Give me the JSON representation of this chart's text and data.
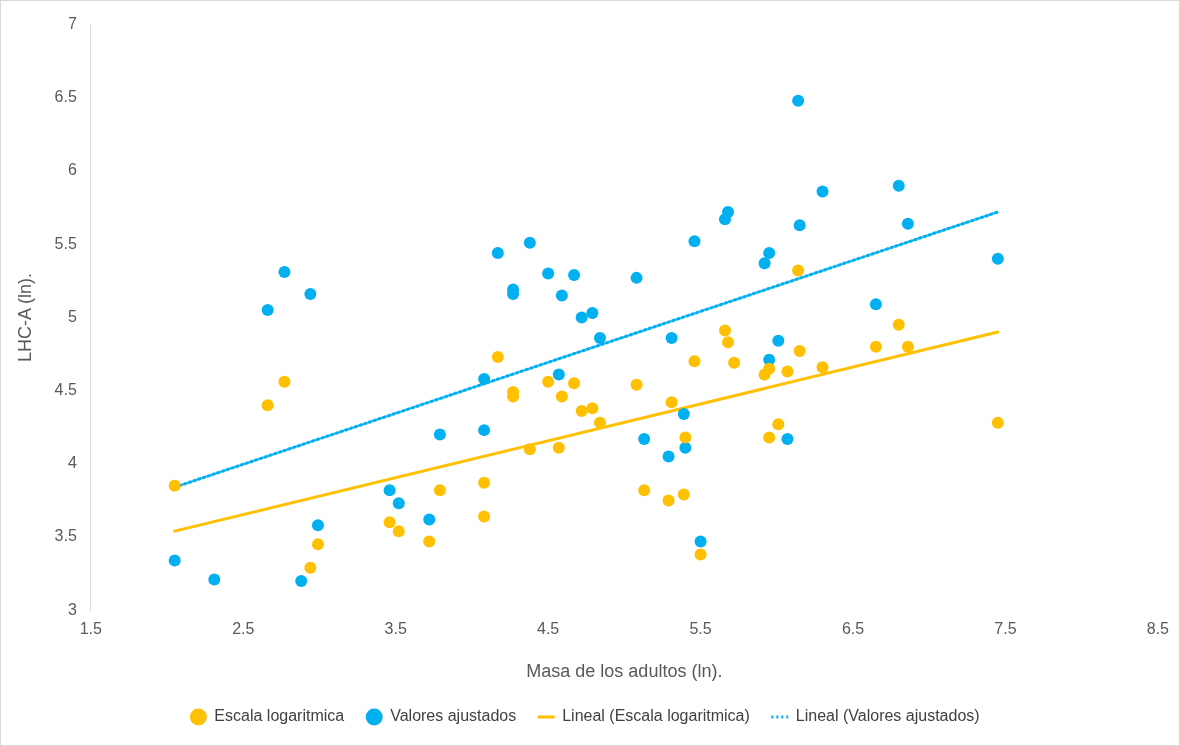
{
  "chart_data": {
    "type": "scatter",
    "xlabel": "Masa de los adultos (ln).",
    "ylabel": "LHC-A (ln).",
    "xlim": [
      1.5,
      8.5
    ],
    "xticks": [
      1.5,
      2.5,
      3.5,
      4.5,
      5.5,
      6.5,
      7.5,
      8.5
    ],
    "ylim": [
      3,
      7
    ],
    "yticks": [
      3,
      3.5,
      4,
      4.5,
      5,
      5.5,
      6,
      6.5,
      7
    ],
    "grid": false,
    "legend": "bottom",
    "marker": "circle",
    "series": [
      {
        "name": "Escala logaritmica",
        "type": "scatter",
        "color": "#ffc000",
        "x": [
          2.05,
          2.66,
          2.77,
          2.94,
          2.99,
          3.46,
          3.52,
          3.72,
          3.79,
          4.08,
          4.08,
          4.17,
          4.27,
          4.27,
          4.38,
          4.5,
          4.57,
          4.59,
          4.67,
          4.72,
          4.79,
          4.84,
          5.08,
          5.13,
          5.29,
          5.31,
          5.39,
          5.4,
          5.46,
          5.5,
          5.66,
          5.68,
          5.72,
          5.92,
          5.95,
          5.95,
          6.01,
          6.07,
          6.14,
          6.15,
          6.3,
          6.65,
          6.8,
          6.86,
          7.45
        ],
        "values": [
          3.85,
          4.4,
          4.56,
          3.29,
          3.45,
          3.6,
          3.54,
          3.47,
          3.82,
          3.87,
          3.64,
          4.73,
          4.49,
          4.46,
          4.1,
          4.56,
          4.11,
          4.46,
          4.55,
          4.36,
          4.38,
          4.28,
          4.54,
          3.82,
          3.75,
          4.42,
          3.79,
          4.18,
          4.7,
          3.38,
          4.91,
          4.83,
          4.69,
          4.61,
          4.65,
          4.18,
          4.27,
          4.63,
          5.32,
          4.77,
          4.66,
          4.8,
          4.95,
          4.8,
          4.28
        ]
      },
      {
        "name": "Valores ajustados",
        "type": "scatter",
        "color": "#00b0f0",
        "x": [
          2.05,
          2.31,
          2.66,
          2.77,
          2.88,
          2.94,
          2.99,
          3.46,
          3.52,
          3.72,
          3.79,
          4.08,
          4.08,
          4.17,
          4.27,
          4.27,
          4.38,
          4.5,
          4.57,
          4.59,
          4.67,
          4.72,
          4.79,
          4.84,
          5.08,
          5.13,
          5.29,
          5.31,
          5.39,
          5.4,
          5.46,
          5.5,
          5.66,
          5.68,
          5.92,
          5.95,
          5.95,
          6.01,
          6.07,
          6.14,
          6.15,
          6.3,
          6.65,
          6.8,
          6.86,
          7.45
        ],
        "values": [
          3.34,
          3.21,
          5.05,
          5.31,
          3.2,
          5.16,
          3.58,
          3.82,
          3.73,
          3.62,
          4.2,
          4.58,
          4.23,
          5.44,
          5.19,
          5.16,
          5.51,
          5.3,
          4.61,
          5.15,
          5.29,
          5.0,
          5.03,
          4.86,
          5.27,
          4.17,
          4.05,
          4.86,
          4.34,
          4.11,
          5.52,
          3.47,
          5.67,
          5.72,
          5.37,
          5.44,
          4.71,
          4.84,
          4.17,
          6.48,
          5.63,
          5.86,
          5.09,
          5.9,
          5.64,
          5.4
        ]
      },
      {
        "name": "Lineal (Escala logaritmica)",
        "type": "line",
        "color": "#ffc000",
        "line_style": "solid",
        "marker": "none",
        "x": [
          2.05,
          7.45
        ],
        "values": [
          3.54,
          4.9
        ]
      },
      {
        "name": "Lineal (Valores ajustados)",
        "type": "line",
        "color": "#00b0f0",
        "line_style": "dotted",
        "marker": "none",
        "x": [
          2.05,
          7.45
        ],
        "values": [
          3.84,
          5.72
        ]
      }
    ]
  }
}
